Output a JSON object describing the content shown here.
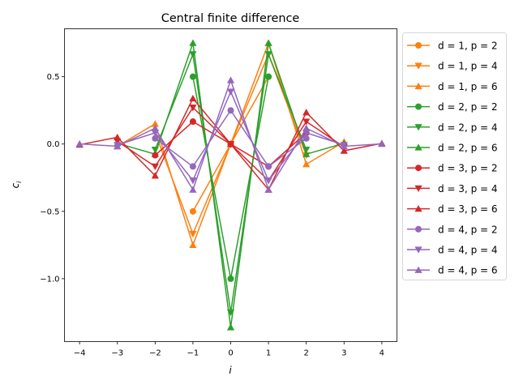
{
  "chart_data": {
    "type": "line",
    "title": "Central finite difference",
    "xlabel": "i",
    "ylabel": "c_i",
    "xlim": [
      -4.4,
      4.4
    ],
    "ylim": [
      -1.467,
      0.856
    ],
    "xticks": [
      -4,
      -3,
      -2,
      -1,
      0,
      1,
      2,
      3,
      4
    ],
    "xtick_labels": [
      "−4",
      "−3",
      "−2",
      "−1",
      "0",
      "1",
      "2",
      "3",
      "4"
    ],
    "yticks": [
      0.5,
      0.0,
      -0.5,
      -1.0
    ],
    "ytick_labels": [
      "0.5",
      "0.0",
      "−0.5",
      "−1.0"
    ],
    "grid": false,
    "legend_placement": "outside-right",
    "series": [
      {
        "name": "d = 1, p = 2",
        "color": "#ff7f0e",
        "marker": "circle",
        "x": [
          -1,
          0,
          1
        ],
        "y": [
          -0.5,
          0,
          0.5
        ]
      },
      {
        "name": "d = 1, p = 4",
        "color": "#ff7f0e",
        "marker": "triangle-down",
        "x": [
          -2,
          -1,
          0,
          1,
          2
        ],
        "y": [
          0.0833,
          -0.6667,
          0,
          0.6667,
          -0.0833
        ]
      },
      {
        "name": "d = 1, p = 6",
        "color": "#ff7f0e",
        "marker": "triangle-up",
        "x": [
          -3,
          -2,
          -1,
          0,
          1,
          2,
          3
        ],
        "y": [
          -0.0167,
          0.15,
          -0.75,
          0,
          0.75,
          -0.15,
          0.0167
        ]
      },
      {
        "name": "d = 2, p = 2",
        "color": "#2ca02c",
        "marker": "circle",
        "x": [
          -1,
          0,
          1
        ],
        "y": [
          0.5,
          -1.0,
          0.5
        ]
      },
      {
        "name": "d = 2, p = 4",
        "color": "#2ca02c",
        "marker": "triangle-down",
        "x": [
          -2,
          -1,
          0,
          1,
          2
        ],
        "y": [
          -0.0417,
          0.6667,
          -1.25,
          0.6667,
          -0.0417
        ]
      },
      {
        "name": "d = 2, p = 6",
        "color": "#2ca02c",
        "marker": "triangle-up",
        "x": [
          -3,
          -2,
          -1,
          0,
          1,
          2,
          3
        ],
        "y": [
          0.0056,
          -0.075,
          0.75,
          -1.3611,
          0.75,
          -0.075,
          0.0056
        ]
      },
      {
        "name": "d = 3, p = 2",
        "color": "#d62728",
        "marker": "circle",
        "x": [
          -2,
          -1,
          0,
          1,
          2
        ],
        "y": [
          -0.0833,
          0.1667,
          0,
          -0.1667,
          0.0833
        ]
      },
      {
        "name": "d = 3, p = 4",
        "color": "#d62728",
        "marker": "triangle-down",
        "x": [
          -3,
          -2,
          -1,
          0,
          1,
          2,
          3
        ],
        "y": [
          0.0208,
          -0.1667,
          0.2708,
          0,
          -0.2708,
          0.1667,
          -0.0208
        ]
      },
      {
        "name": "d = 3, p = 6",
        "color": "#d62728",
        "marker": "triangle-up",
        "x": [
          -4,
          -3,
          -2,
          -1,
          0,
          1,
          2,
          3,
          4
        ],
        "y": [
          -0.0049,
          0.05,
          -0.2347,
          0.3389,
          0,
          -0.3389,
          0.2347,
          -0.05,
          0.0049
        ]
      },
      {
        "name": "d = 4, p = 2",
        "color": "#9467bd",
        "marker": "circle",
        "x": [
          -2,
          -1,
          0,
          1,
          2
        ],
        "y": [
          0.0417,
          -0.1667,
          0.25,
          -0.1667,
          0.0417
        ]
      },
      {
        "name": "d = 4, p = 4",
        "color": "#9467bd",
        "marker": "triangle-down",
        "x": [
          -3,
          -2,
          -1,
          0,
          1,
          2,
          3
        ],
        "y": [
          -0.0069,
          0.0833,
          -0.2708,
          0.3889,
          -0.2708,
          0.0833,
          -0.0069
        ]
      },
      {
        "name": "d = 4, p = 6",
        "color": "#9467bd",
        "marker": "triangle-up",
        "x": [
          -4,
          -3,
          -2,
          -1,
          0,
          1,
          2,
          3,
          4
        ],
        "y": [
          0.0012,
          -0.0167,
          0.1174,
          -0.3389,
          0.474,
          -0.3389,
          0.1174,
          -0.0167,
          0.0012
        ]
      }
    ]
  }
}
